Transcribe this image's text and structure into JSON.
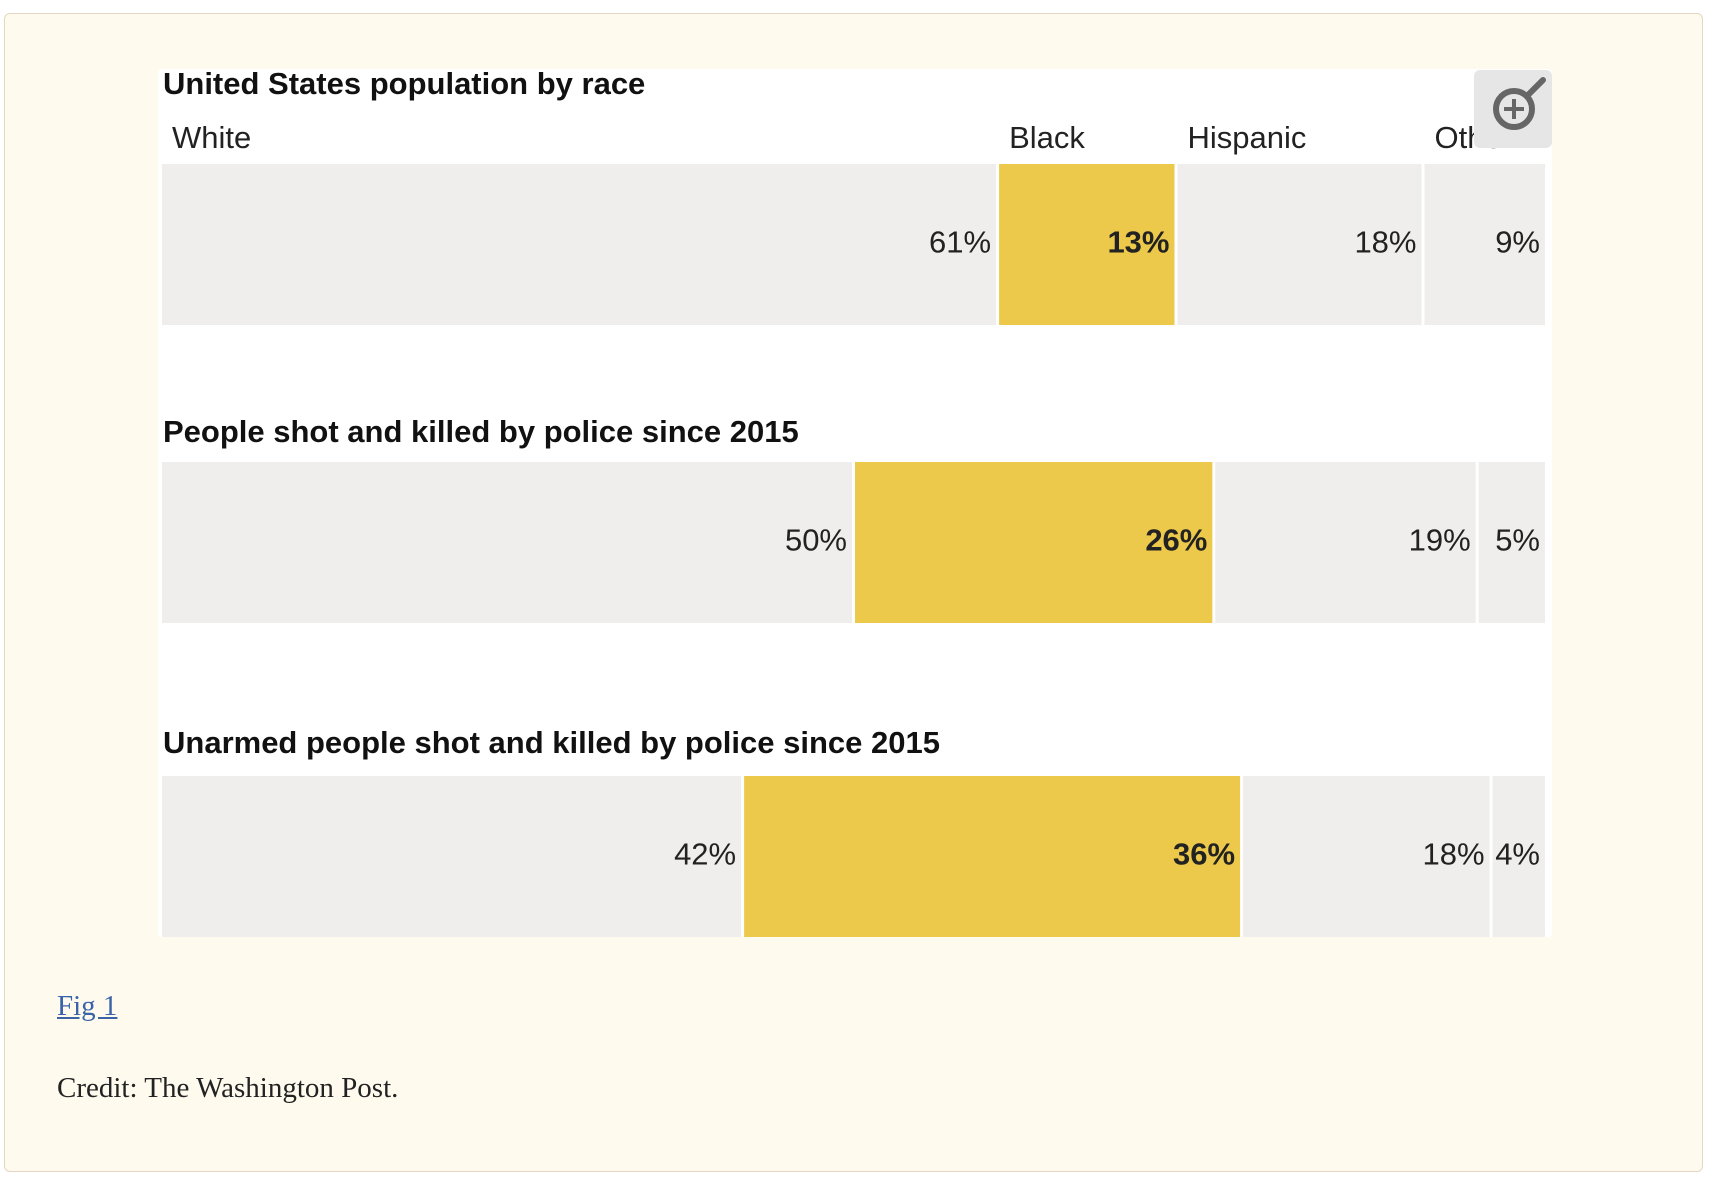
{
  "chart_data": {
    "type": "stacked-bar",
    "categories": [
      "United States population by race",
      "People shot and killed by police since 2015",
      "Unarmed people shot and killed by police since 2015"
    ],
    "series": [
      {
        "name": "White",
        "color": "#efeeec",
        "values": [
          61,
          50,
          42
        ],
        "value_labels": [
          "61%",
          "50%",
          "42%"
        ]
      },
      {
        "name": "Black",
        "color": "#ecc94b",
        "bold": true,
        "values": [
          13,
          26,
          36
        ],
        "value_labels": [
          "13%",
          "26%",
          "36%"
        ]
      },
      {
        "name": "Hispanic",
        "color": "#efeeec",
        "values": [
          18,
          19,
          18
        ],
        "value_labels": [
          "18%",
          "19%",
          "18%"
        ]
      },
      {
        "name": "Other",
        "color": "#efeeec",
        "values": [
          9,
          5,
          4
        ],
        "value_labels": [
          "9%",
          "5%",
          "4%"
        ]
      }
    ]
  },
  "caption": {
    "link": "Fig 1",
    "credit": "Credit: The Washington Post."
  }
}
